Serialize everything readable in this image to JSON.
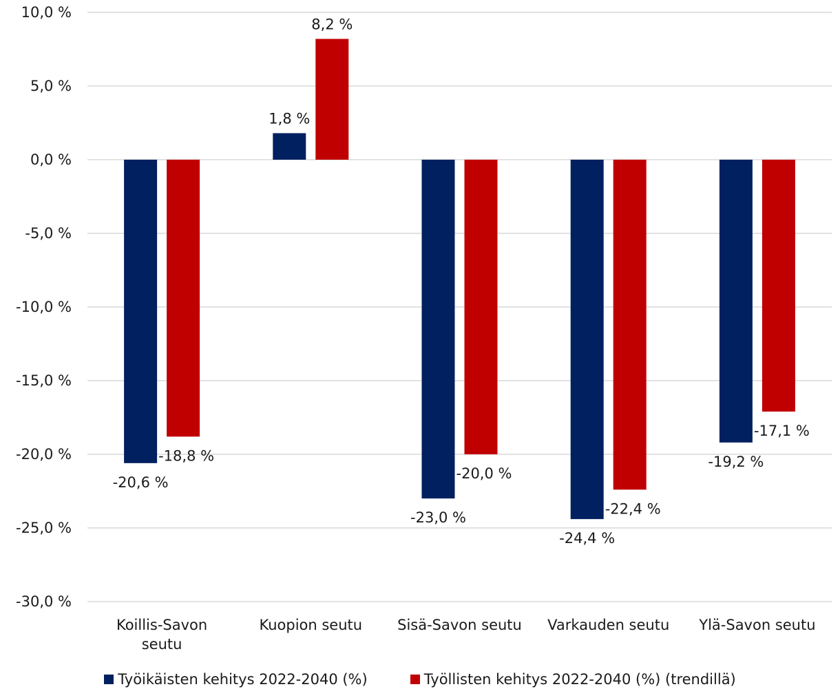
{
  "chart_data": {
    "type": "bar",
    "title": "",
    "xlabel": "",
    "ylabel": "",
    "ylim": [
      -30,
      10
    ],
    "ytick_step": 5,
    "ytick_labels": [
      "10,0 %",
      "5,0 %",
      "0,0 %",
      "-5,0 %",
      "-10,0 %",
      "-15,0 %",
      "-20,0 %",
      "-25,0 %",
      "-30,0 %"
    ],
    "categories": [
      "Koillis-Savon seutu",
      "Kuopion seutu",
      "Sisä-Savon seutu",
      "Varkauden seutu",
      "Ylä-Savon seutu"
    ],
    "category_lines": [
      [
        "Koillis-Savon",
        "seutu"
      ],
      [
        "Kuopion seutu"
      ],
      [
        "Sisä-Savon seutu"
      ],
      [
        "Varkauden seutu"
      ],
      [
        "Ylä-Savon seutu"
      ]
    ],
    "grid": true,
    "legend_position": "bottom",
    "series": [
      {
        "name": "Työikäisten kehitys 2022-2040 (%)",
        "color": "#002060",
        "values": [
          -20.6,
          1.8,
          -23.0,
          -24.4,
          -19.2
        ],
        "labels": [
          "-20,6 %",
          "1,8 %",
          "-23,0 %",
          "-24,4 %",
          "-19,2 %"
        ]
      },
      {
        "name": "Työllisten kehitys 2022-2040 (%) (trendillä)",
        "color": "#C00000",
        "values": [
          -18.8,
          8.2,
          -20.0,
          -22.4,
          -17.1
        ],
        "labels": [
          "-18,8 %",
          "8,2 %",
          "-20,0 %",
          "-22,4 %",
          "-17,1 %"
        ]
      }
    ]
  }
}
